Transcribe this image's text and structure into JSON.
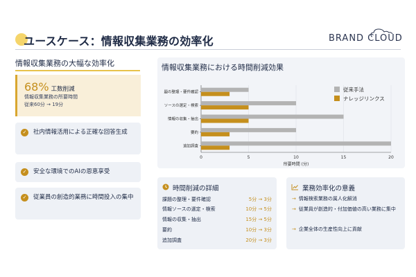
{
  "slide": {
    "title": "ユースケース：情報収集業務の効率化",
    "brand": "BRAND CLOUD"
  },
  "left": {
    "heading": "情報収集業務の大幅な効率化",
    "metric": {
      "percent": "68%",
      "label": "工数削減",
      "line1": "情報収集業務の所要時間",
      "line2": "従来60分 → 19分"
    },
    "features": [
      "社内情報活用による正確な回答生成",
      "安全な環境でのAIの恩恵享受",
      "従業員の創造的業務に時間投入の集中"
    ]
  },
  "chart_data": {
    "type": "bar",
    "title": "情報収集業務における時間削減効果",
    "categories": [
      "課題の整理・要件確認",
      "情報ソースの選定・検索",
      "情報の収集・抽出",
      "要約",
      "追加調査"
    ],
    "series": [
      {
        "name": "従来手法",
        "values": [
          5,
          10,
          15,
          10,
          20
        ],
        "color": "#b3b3b3"
      },
      {
        "name": "ナレッジリンクス",
        "values": [
          3,
          5,
          5,
          3,
          3
        ],
        "color": "#c58f1d"
      }
    ],
    "xlabel": "所要時間 (分)",
    "xlim": [
      0,
      20
    ],
    "xticks": [
      0,
      5,
      10,
      15,
      20
    ],
    "legend": "top-right",
    "grid": true,
    "displayed_categories": [
      "題の整理・要件確認",
      "ソースの選定・検索",
      "情報の収集・抽出",
      "要約",
      "追加調査"
    ]
  },
  "detail": {
    "heading": "時間削減の詳細",
    "rows": [
      {
        "label": "課題の整理・要件確認",
        "value": "5分 → 3分"
      },
      {
        "label": "情報ソースの選定・検索",
        "value": "10分 → 5分"
      },
      {
        "label": "情報の収集・抽出",
        "value": "15分 → 5分"
      },
      {
        "label": "要約",
        "value": "10分 → 3分"
      },
      {
        "label": "追加調査",
        "value": "20分 → 3分"
      }
    ]
  },
  "efficiency": {
    "heading": "業務効率化の意義",
    "items": [
      "情報検索業務の属人化解消",
      "従業員が創造的・付加価値の高い業務に集中",
      "企業全体の生産性向上に貢献"
    ]
  },
  "colors": {
    "accent": "#c58f1d",
    "title_dot": "#f5d56b",
    "gray_bar": "#b3b3b3",
    "panel": "#eef1f6"
  }
}
